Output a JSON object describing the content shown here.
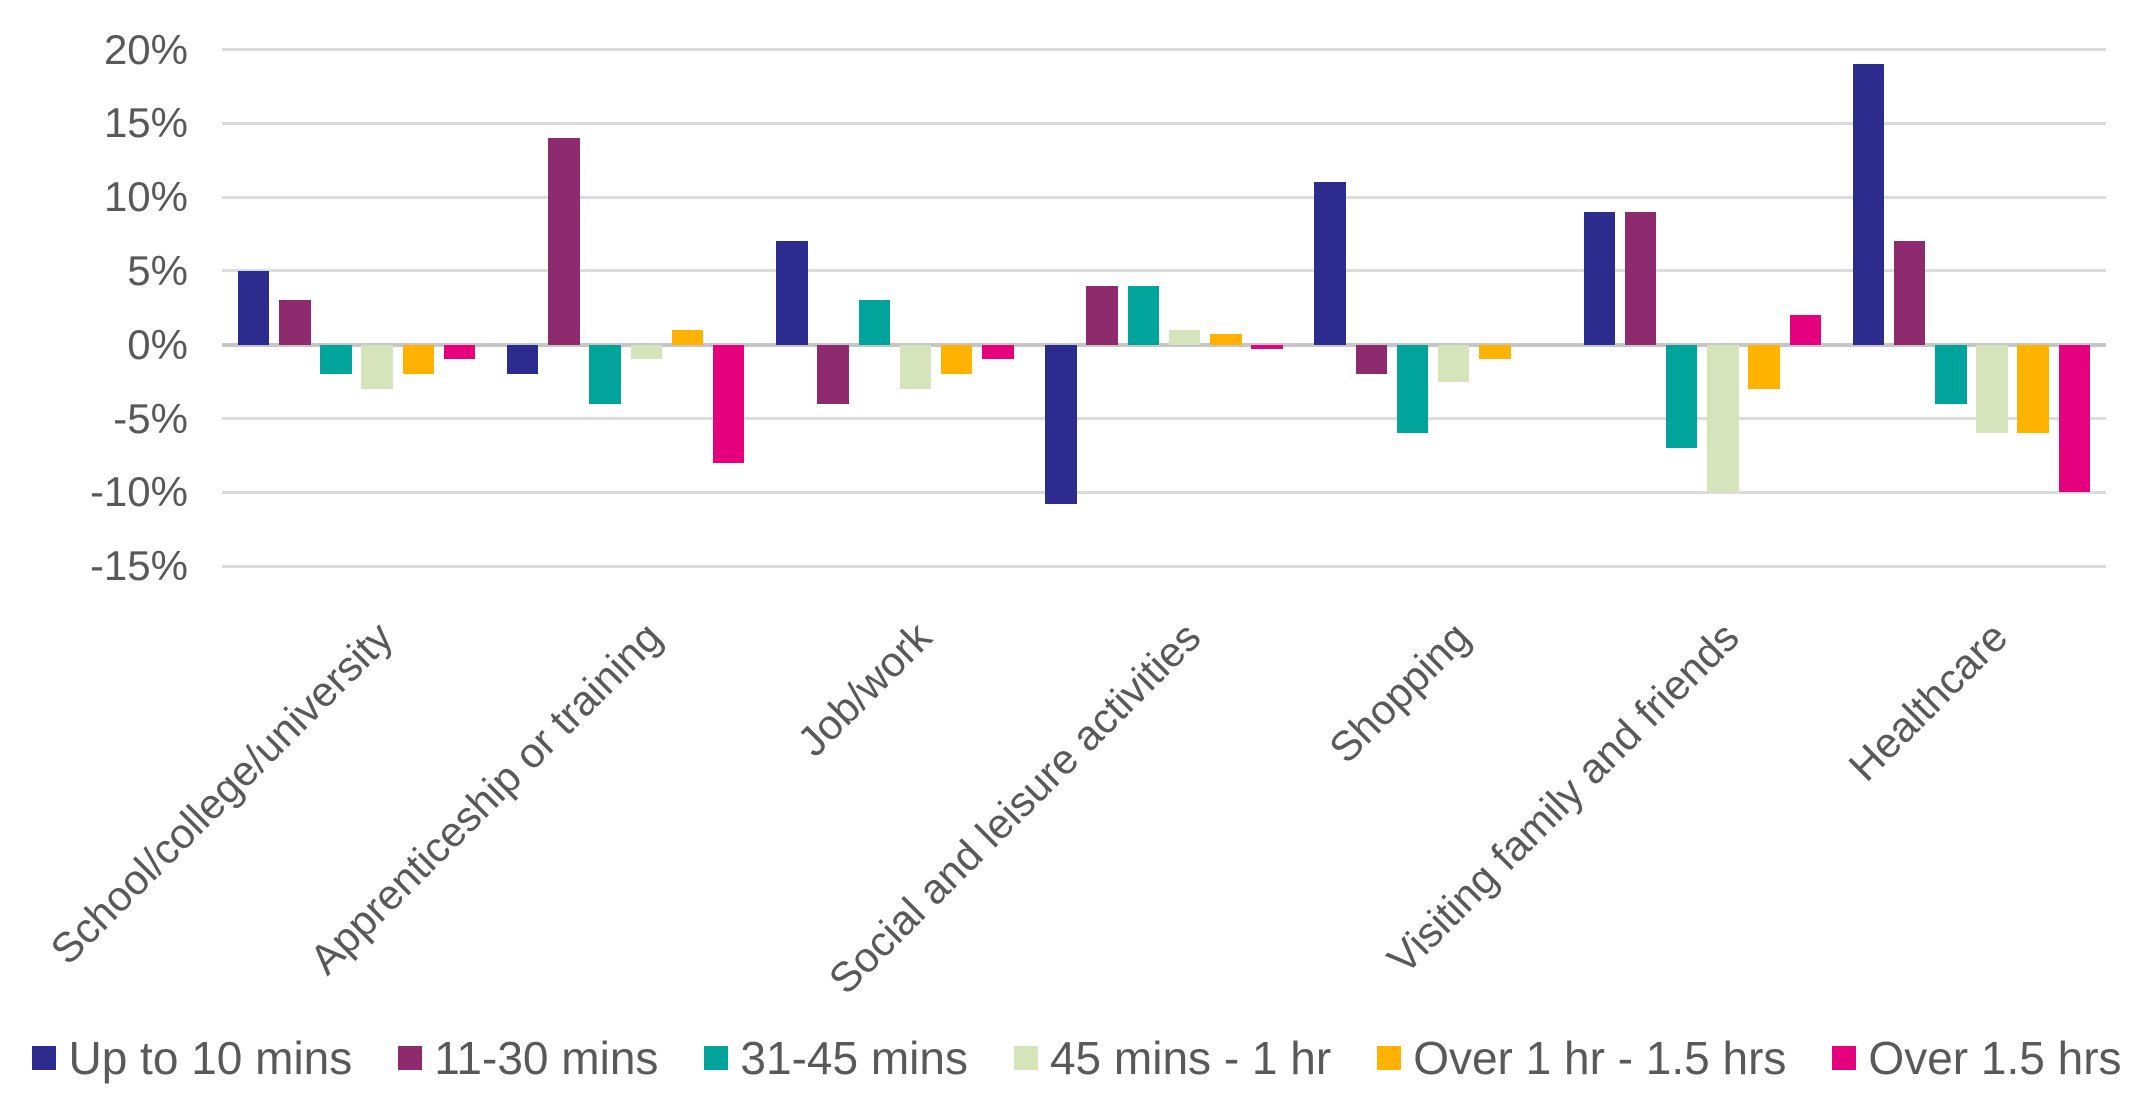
{
  "chart_data": {
    "type": "bar",
    "title": "",
    "categories": [
      "School/college/university",
      "Apprenticeship or training",
      "Job/work",
      "Social and leisure activities",
      "Shopping",
      "Visiting family and friends",
      "Healthcare"
    ],
    "series": [
      {
        "name": "Up to 10 mins",
        "color": "#2B2C8E",
        "values": [
          5,
          -2,
          7,
          -10.8,
          11,
          9,
          19
        ]
      },
      {
        "name": "11-30 mins",
        "color": "#8E2A6E",
        "values": [
          3,
          14,
          -4,
          4,
          -2,
          9,
          7
        ]
      },
      {
        "name": "31-45 mins",
        "color": "#00A49A",
        "values": [
          -2,
          -4,
          3,
          4,
          -6,
          -7,
          -4
        ]
      },
      {
        "name": "45 mins - 1 hr",
        "color": "#D6E4BC",
        "values": [
          -3,
          -1,
          -3,
          1,
          -2.5,
          -10,
          -6
        ]
      },
      {
        "name": "Over 1 hr - 1.5 hrs",
        "color": "#FFB200",
        "values": [
          -2,
          1,
          -2,
          0.7,
          -1,
          -3,
          -6
        ]
      },
      {
        "name": "Over 1.5 hrs",
        "color": "#E5007D",
        "values": [
          -1,
          -8,
          -1,
          -0.3,
          0,
          2,
          -10
        ]
      }
    ],
    "y_ticks": [
      20,
      15,
      10,
      5,
      0,
      -5,
      -10,
      -15
    ],
    "y_tick_labels": [
      "20%",
      "15%",
      "10%",
      "5%",
      "0%",
      "-5%",
      "-10%",
      "-15%"
    ],
    "ylim": [
      -15,
      20
    ],
    "grid": true,
    "legend_position": "bottom"
  },
  "colors": {
    "gridline": "#dcdcdc",
    "zero_axis": "#c6c6c6",
    "text": "#595959",
    "background": "#ffffff"
  }
}
